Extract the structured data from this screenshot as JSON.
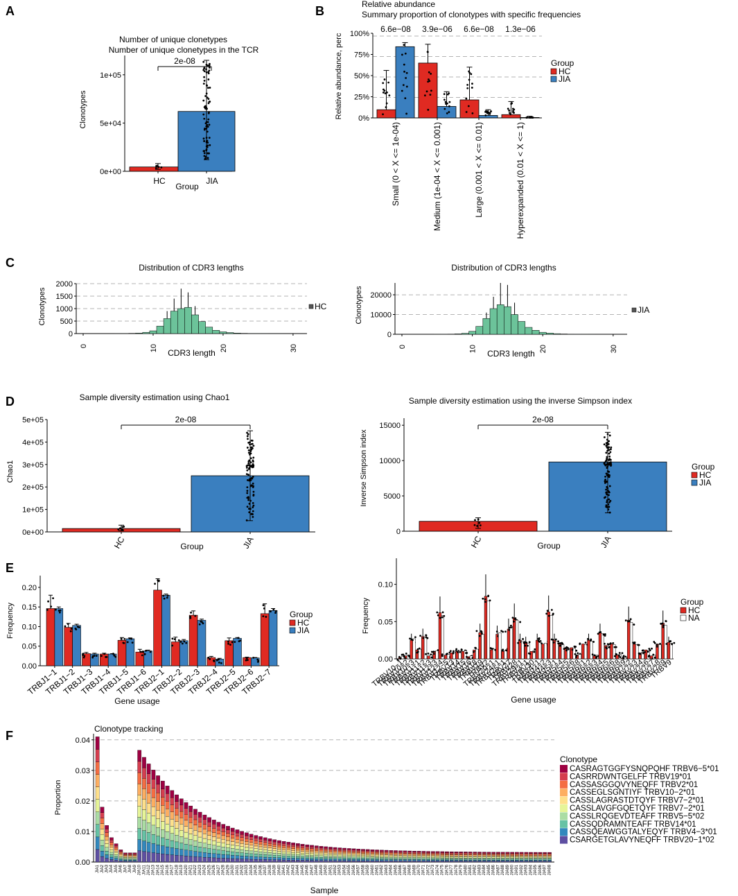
{
  "panel_labels": [
    "A",
    "B",
    "C",
    "D",
    "E",
    "F"
  ],
  "colors": {
    "hc": "#e02a22",
    "jia": "#3a7fbf",
    "na": "#ffffff",
    "green": "#6cc39a",
    "grid": "#b3b3b3"
  },
  "chart_data": [
    {
      "id": "A",
      "type": "bar",
      "title": "Number of unique clonetypes",
      "subtitle": "Number of unique clonetypes in the TCR",
      "xlabel": "Group",
      "ylabel": "Clonotypes",
      "categories": [
        "HC",
        "JIA"
      ],
      "values": [
        4500,
        62000
      ],
      "error_high": [
        8000,
        115000
      ],
      "error_low": [
        2000,
        12000
      ],
      "ylim": [
        0,
        120000
      ],
      "yticks": [
        0,
        50000,
        100000
      ],
      "ytick_labels": [
        "0e+00",
        "5e+04",
        "1e+05"
      ],
      "pvalue": "2e-08"
    },
    {
      "id": "B",
      "type": "bar",
      "title": "Relative abundance",
      "subtitle": "Summary proportion of clonotypes with specific frequencies",
      "ylabel": "Relative abundance, perc",
      "categories": [
        "Small (0 < X <= 1e-04)",
        "Medium (1e-04 < X <= 0.001)",
        "Large (0.001 < X <= 0.01)",
        "Hyperexpanded (0.01 < X <= 1)"
      ],
      "series": [
        {
          "name": "HC",
          "values": [
            10,
            67,
            22,
            4
          ]
        },
        {
          "name": "JIA",
          "values": [
            87,
            14,
            3,
            0.5
          ]
        }
      ],
      "error_high": [
        [
          58,
          90,
          62,
          20
        ],
        [
          92,
          32,
          10,
          2
        ]
      ],
      "ylim": [
        0,
        100
      ],
      "yticks": [
        0,
        25,
        50,
        75,
        100
      ],
      "ytick_labels": [
        "0%",
        "25%",
        "50%",
        "75%",
        "100%"
      ],
      "pvalues": [
        "6.6e−08",
        "3.9e−06",
        "6.6e−08",
        "1.3e−06"
      ],
      "legend_title": "Group",
      "legend": [
        "HC",
        "JIA"
      ]
    },
    {
      "id": "C1",
      "type": "histogram",
      "title": "Distribution of CDR3 lengths",
      "xlabel": "CDR3 length",
      "ylabel": "Clonotypes",
      "x": [
        5,
        6,
        7,
        8,
        9,
        10,
        11,
        12,
        13,
        14,
        15,
        16,
        17,
        18,
        19,
        20,
        21,
        22,
        23,
        24,
        25,
        26,
        27,
        28,
        29,
        30
      ],
      "values": [
        2,
        4,
        10,
        20,
        50,
        110,
        300,
        600,
        900,
        1000,
        1050,
        750,
        480,
        260,
        130,
        70,
        40,
        20,
        10,
        5,
        3,
        2,
        1,
        1,
        0,
        0
      ],
      "error_high": [
        null,
        null,
        null,
        null,
        null,
        null,
        null,
        900,
        1400,
        1800,
        1650,
        1100,
        null,
        null,
        null,
        null,
        null,
        null,
        null,
        null,
        null,
        null,
        null,
        null,
        null,
        null
      ],
      "ylim": [
        0,
        2000
      ],
      "yticks": [
        0,
        500,
        1000,
        1500,
        2000
      ],
      "xlim": [
        0,
        31
      ],
      "xticks": [
        0,
        10,
        20,
        30
      ],
      "legend": [
        "HC"
      ]
    },
    {
      "id": "C2",
      "type": "histogram",
      "title": "Distribution of CDR3 lengths",
      "xlabel": "CDR3 length",
      "ylabel": "Clonotypes",
      "x": [
        5,
        6,
        7,
        8,
        9,
        10,
        11,
        12,
        13,
        14,
        15,
        16,
        17,
        18,
        19,
        20,
        21,
        22,
        23,
        24,
        25,
        26,
        27,
        28,
        29,
        30
      ],
      "values": [
        20,
        50,
        100,
        200,
        500,
        1500,
        4000,
        8000,
        13000,
        15000,
        14000,
        10000,
        6500,
        3500,
        2000,
        1000,
        600,
        300,
        150,
        80,
        40,
        20,
        10,
        5,
        0,
        0
      ],
      "error_high": [
        null,
        null,
        null,
        null,
        null,
        null,
        null,
        11000,
        19000,
        26000,
        25000,
        16000,
        null,
        null,
        null,
        null,
        null,
        null,
        null,
        null,
        null,
        null,
        null,
        null,
        null,
        null
      ],
      "ylim": [
        0,
        26000
      ],
      "yticks": [
        0,
        10000,
        20000
      ],
      "xlim": [
        0,
        31
      ],
      "xticks": [
        0,
        10,
        20,
        30
      ],
      "legend": [
        "JIA"
      ]
    },
    {
      "id": "D1",
      "type": "bar",
      "title": "Sample diversity estimation using Chao1",
      "xlabel": "Group",
      "ylabel": "Chao1",
      "categories": [
        "HC",
        "JIA"
      ],
      "values": [
        15000,
        250000
      ],
      "error_high": [
        30000,
        450000
      ],
      "error_low": [
        5000,
        50000
      ],
      "ylim": [
        0,
        500000
      ],
      "yticks": [
        0,
        100000,
        200000,
        300000,
        400000,
        500000
      ],
      "ytick_labels": [
        "0e+00",
        "1e+05",
        "2e+05",
        "3e+05",
        "4e+05",
        "5e+05"
      ],
      "pvalue": "2e-08"
    },
    {
      "id": "D2",
      "type": "bar",
      "title": "Sample diversity estimation using the inverse Simpson index",
      "xlabel": "Group",
      "ylabel": "Inverse Simpson index",
      "categories": [
        "HC",
        "JIA"
      ],
      "values": [
        1400,
        9800
      ],
      "error_high": [
        1900,
        14000
      ],
      "error_low": [
        400,
        2600
      ],
      "ylim": [
        0,
        16000
      ],
      "yticks": [
        0,
        5000,
        10000,
        15000
      ],
      "pvalue": "2e-08",
      "legend_title": "Group",
      "legend": [
        "HC",
        "JIA"
      ]
    },
    {
      "id": "E1",
      "type": "bar",
      "xlabel": "Gene usage",
      "ylabel": "Frequency",
      "categories": [
        "TRBJ1−1",
        "TRBJ1−2",
        "TRBJ1−3",
        "TRBJ1−4",
        "TRBJ1−5",
        "TRBJ1−6",
        "TRBJ2−1",
        "TRBJ2−2",
        "TRBJ2−3",
        "TRBJ2−4",
        "TRBJ2−5",
        "TRBJ2−6",
        "TRBJ2−7"
      ],
      "series": [
        {
          "name": "HC",
          "values": [
            0.146,
            0.098,
            0.031,
            0.03,
            0.065,
            0.035,
            0.193,
            0.061,
            0.129,
            0.021,
            0.064,
            0.021,
            0.133
          ]
        },
        {
          "name": "JIA",
          "values": [
            0.146,
            0.103,
            0.03,
            0.03,
            0.069,
            0.038,
            0.18,
            0.064,
            0.116,
            0.017,
            0.07,
            0.02,
            0.141
          ]
        }
      ],
      "error_high": [
        [
          0.18,
          0.108,
          0.034,
          0.032,
          0.072,
          0.042,
          0.222,
          0.073,
          0.14,
          0.024,
          0.071,
          0.022,
          0.158
        ],
        [
          0.15,
          0.106,
          0.032,
          0.031,
          0.071,
          0.04,
          0.183,
          0.067,
          0.119,
          0.019,
          0.072,
          0.021,
          0.146
        ]
      ],
      "ylim": [
        0,
        0.23
      ],
      "yticks": [
        0,
        0.05,
        0.1,
        0.15,
        0.2
      ],
      "ytick_labels": [
        "0.00",
        "0.05",
        "0.10",
        "0.15",
        "0.20"
      ],
      "legend_title": "Group",
      "legend": [
        "HC",
        "JIA"
      ]
    },
    {
      "id": "E2",
      "type": "bar",
      "xlabel": "Gene usage",
      "ylabel": "Frequency",
      "categories": [
        "TRBV10−1",
        "TRBV10−2",
        "TRBV10−3",
        "TRBV11−1",
        "TRBV11−2",
        "TRBV11−3",
        "TRBV12−3",
        "TRBV12−4",
        "TRBV12−5",
        "TRBV13",
        "TRBV14",
        "TRBV15",
        "TRBV16",
        "TRBV18",
        "TRBV19",
        "TRBV2",
        "TRBV20−1",
        "TRBV24−1",
        "TRBV25−1",
        "TRBV27",
        "TRBV28",
        "TRBV29−1",
        "TRBV3−1",
        "TRBV30",
        "TRBV4−1",
        "TRBV4−2",
        "TRBV4−3",
        "TRBV5−1",
        "TRBV5−4",
        "TRBV5−5",
        "TRBV5−6",
        "TRBV5−8",
        "TRBV6−1",
        "TRBV6−2",
        "TRBV6−3",
        "TRBV6−4",
        "TRBV6−5",
        "TRBV6−6",
        "TRBV6−8",
        "TRBV6−9",
        "TRBV7−2",
        "TRBV7−3",
        "TRBV7−4",
        "TRBV7−6",
        "TRBV7−7",
        "TRBV7−8",
        "TRBV7−9",
        "TRBV9"
      ],
      "series": [
        {
          "name": "HC",
          "values": [
            0.002,
            0.004,
            0.025,
            0.012,
            0.03,
            0.004,
            0.01,
            0.062,
            0.005,
            0.008,
            0.01,
            0.01,
            0.003,
            0.012,
            0.035,
            0.084,
            0.012,
            0.033,
            0.01,
            0.04,
            0.055,
            0.025,
            0.022,
            0.01,
            0.025,
            0.02,
            0.063,
            0.025,
            0.02,
            0.015,
            0.015,
            0.005,
            0.02,
            0.025,
            0.004,
            0.035,
            0.018,
            0.02,
            0.005,
            0.001,
            0.052,
            0.02,
            0.008,
            0.012,
            0.004,
            0.02,
            0.048,
            0.022
          ]
        },
        {
          "name": "NA",
          "values": [
            0.003,
            0.005,
            0.027,
            0.013,
            0.029,
            0.005,
            0.011,
            0.058,
            0.006,
            0.009,
            0.011,
            0.011,
            0.004,
            0.013,
            0.033,
            0.078,
            0.013,
            0.035,
            0.011,
            0.042,
            0.052,
            0.024,
            0.021,
            0.011,
            0.024,
            0.021,
            0.058,
            0.024,
            0.019,
            0.014,
            0.014,
            0.006,
            0.019,
            0.024,
            0.005,
            0.034,
            0.017,
            0.019,
            0.006,
            0.002,
            0.049,
            0.019,
            0.009,
            0.011,
            0.005,
            0.019,
            0.045,
            0.021
          ]
        }
      ],
      "ylim": [
        0,
        0.135
      ],
      "yticks": [
        0,
        0.05,
        0.1
      ],
      "ytick_labels": [
        "0.00",
        "0.05",
        "0.10"
      ],
      "legend_title": "Group",
      "legend": [
        "HC",
        "NA"
      ]
    },
    {
      "id": "F",
      "type": "area",
      "title": "Clonotype tracking",
      "xlabel": "Sample",
      "ylabel": "Proportion",
      "x_count": 98,
      "ylim": [
        0,
        0.042
      ],
      "yticks": [
        0,
        0.01,
        0.02,
        0.03,
        0.04
      ],
      "ytick_labels": [
        "0.00",
        "0.01",
        "0.02",
        "0.03",
        "0.04"
      ],
      "legend_title": "Clonotype",
      "legend": [
        "CASRAGTGGFYSNQPQHF TRBV6−5*01",
        "CASRRDWNTGELFF TRBV19*01",
        "CASSASGGQVYNEQFF TRBV2*01",
        "CASSEGLSGNTIYF TRBV10−2*01",
        "CASSLAGRASTDTQYF TRBV7−2*01",
        "CASSLAVGFGQETQYF TRBV7−2*01",
        "CASSLRQGEVDTEAFF TRBV5−5*02",
        "CASSQDRAMNTEAFF TRBV14*01",
        "CASSQEAWGGTALYEQYF TRBV4−3*01",
        "CSARGETGLAVYNEQFF TRBV20−1*02"
      ],
      "legend_colors": [
        "#9e0142",
        "#d53e4f",
        "#f46d43",
        "#fdae61",
        "#fee08b",
        "#e6f598",
        "#abdda4",
        "#66c2a5",
        "#3288bd",
        "#5e4fa2"
      ]
    }
  ]
}
